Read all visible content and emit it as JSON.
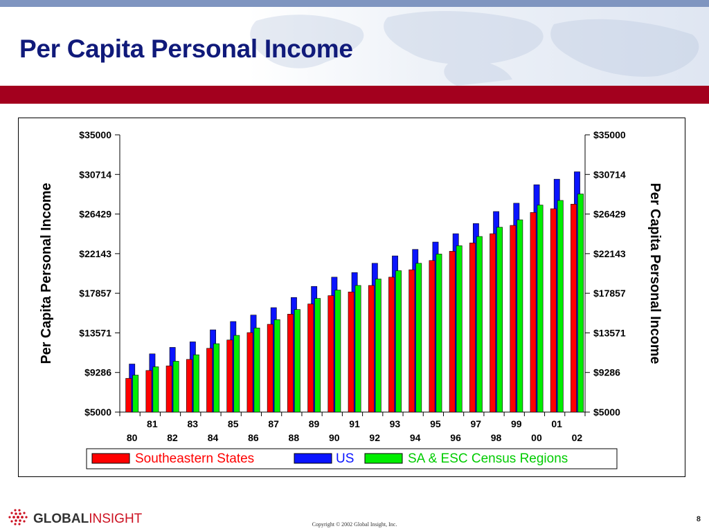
{
  "slide": {
    "title": "Per Capita Personal Income",
    "copyright": "Copyright © 2002 Global Insight, Inc.",
    "page_number": "8",
    "logo_text": {
      "bold": "GLOBAL",
      "light": "INSIGHT"
    }
  },
  "colors": {
    "title": "#101a7a",
    "red_bar": "#a3001e",
    "top_strip": "#7f95c0"
  },
  "chart_data": {
    "type": "bar",
    "title": "",
    "ylabel": "Per Capita Personal Income",
    "ylabel_right": "Per Capita Personal Income",
    "xlabel": "",
    "ylim": [
      5000,
      35000
    ],
    "yticks": [
      "$35000",
      "$30714",
      "$26429",
      "$22143",
      "$17857",
      "$13571",
      "$9286",
      "$5000"
    ],
    "ytick_values": [
      35000,
      30714,
      26429,
      22143,
      17857,
      13571,
      9286,
      5000
    ],
    "categories": [
      "80",
      "81",
      "82",
      "83",
      "84",
      "85",
      "86",
      "87",
      "88",
      "89",
      "90",
      "91",
      "92",
      "93",
      "94",
      "95",
      "96",
      "97",
      "98",
      "99",
      "00",
      "01",
      "02"
    ],
    "grid": false,
    "legend_position": "bottom",
    "series": [
      {
        "name": "Southeastern States",
        "color": "#ff0000",
        "values": [
          8650,
          9500,
          10000,
          10700,
          11900,
          12800,
          13600,
          14500,
          15600,
          16700,
          17600,
          18000,
          18700,
          19600,
          20400,
          21400,
          22400,
          23300,
          24300,
          25200,
          26600,
          27000,
          27500
        ]
      },
      {
        "name": "US",
        "color": "#0a14ff",
        "values": [
          10200,
          11300,
          12000,
          12600,
          13900,
          14800,
          15500,
          16300,
          17400,
          18600,
          19600,
          20100,
          21100,
          21900,
          22600,
          23400,
          24300,
          25400,
          26700,
          27600,
          29600,
          30200,
          31000
        ]
      },
      {
        "name": "SA & ESC Census Regions",
        "color": "#00ee00",
        "values": [
          9000,
          9900,
          10500,
          11200,
          12400,
          13300,
          14100,
          15000,
          16100,
          17300,
          18200,
          18700,
          19400,
          20300,
          21100,
          22100,
          23000,
          24000,
          25000,
          25800,
          27400,
          27900,
          28600
        ]
      }
    ]
  }
}
